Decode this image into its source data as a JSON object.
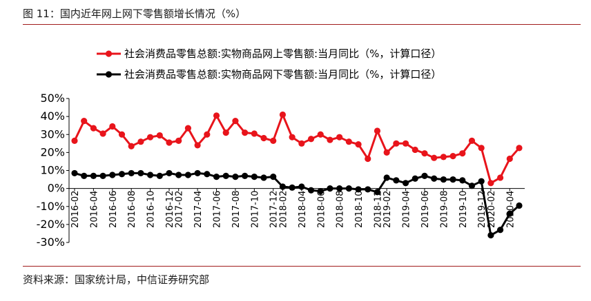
{
  "figure": {
    "title": "图 11：国内近年网上网下零售额增长情况（%）",
    "source": "资料来源：国家统计局，中信证券研究部"
  },
  "chart_data": {
    "type": "line",
    "title": "",
    "xlabel": "",
    "ylabel": "",
    "ylim": [
      -30,
      50
    ],
    "y_ticks": [
      "-30%",
      "-20%",
      "-10%",
      "0%",
      "10%",
      "20%",
      "30%",
      "40%",
      "50%"
    ],
    "grid": false,
    "legend_position": "top",
    "x_tick_labels": [
      "2016-02",
      "2016-04",
      "2016-06",
      "2016-08",
      "2016-10",
      "2016-12",
      "2017-02",
      "2017-04",
      "2017-06",
      "2017-08",
      "2017-10",
      "2017-12",
      "2018-02",
      "2018-04",
      "2018-06",
      "2018-08",
      "2018-10",
      "2018-12",
      "2019-02",
      "2019-04",
      "2019-06",
      "2019-08",
      "2019-10",
      "2019-12",
      "2020-02",
      "2020-04"
    ],
    "x": [
      "2016-02",
      "2016-03",
      "2016-04",
      "2016-05",
      "2016-06",
      "2016-07",
      "2016-08",
      "2016-09",
      "2016-10",
      "2016-11",
      "2016-12",
      "2017-02",
      "2017-03",
      "2017-04",
      "2017-05",
      "2017-06",
      "2017-07",
      "2017-08",
      "2017-09",
      "2017-10",
      "2017-11",
      "2017-12",
      "2018-02",
      "2018-03",
      "2018-04",
      "2018-05",
      "2018-06",
      "2018-07",
      "2018-08",
      "2018-09",
      "2018-10",
      "2018-11",
      "2018-12",
      "2019-02",
      "2019-03",
      "2019-04",
      "2019-05",
      "2019-06",
      "2019-07",
      "2019-08",
      "2019-09",
      "2019-10",
      "2019-11",
      "2019-12",
      "2020-02",
      "2020-03",
      "2020-04",
      "2020-05"
    ],
    "series": [
      {
        "name": "社会消费品零售总额:实物商品网上零售额:当月同比（%，计算口径）",
        "color": "#e8141b",
        "values": [
          26.5,
          37.5,
          33.5,
          30.5,
          34.5,
          30,
          23.5,
          26,
          28.5,
          29.5,
          25.5,
          26.5,
          33.5,
          24,
          30,
          40.5,
          31,
          37.5,
          31,
          30.5,
          28,
          26.5,
          41,
          28.5,
          25,
          27.5,
          30,
          27,
          28.5,
          26,
          24.5,
          16.5,
          32,
          20,
          25,
          25,
          21.5,
          19.5,
          17,
          17.5,
          18,
          19.5,
          26.5,
          22.5,
          3,
          6,
          16.5,
          22.5
        ]
      },
      {
        "name": "社会消费品零售总额:实物商品网下零售额:当月同比（%，计算口径）",
        "color": "#000000",
        "values": [
          8.5,
          7,
          7,
          7,
          7.5,
          8,
          8.5,
          8.5,
          7.5,
          7,
          8.5,
          7.5,
          7.5,
          8.5,
          8,
          6.5,
          7,
          6.5,
          7,
          6.5,
          6,
          6.5,
          1,
          0.5,
          1,
          -1,
          -1.5,
          0,
          0,
          0,
          -0.5,
          -0.5,
          -2,
          6,
          4.5,
          3,
          5.5,
          7,
          5.5,
          5,
          5,
          4.5,
          1.5,
          4,
          -26,
          -23,
          -14,
          -9.5
        ]
      }
    ]
  }
}
